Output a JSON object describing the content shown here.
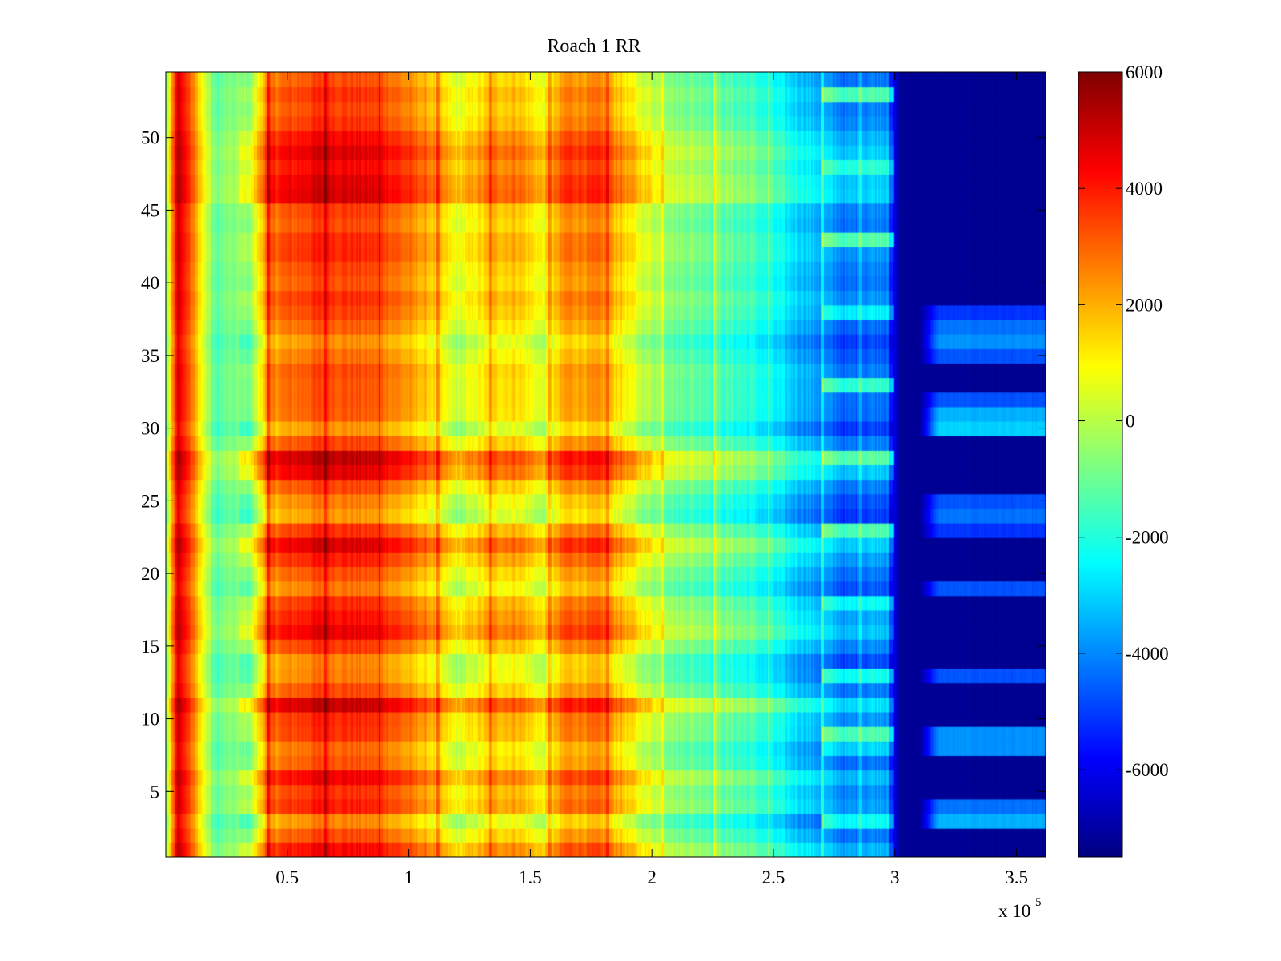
{
  "chart_data": {
    "type": "heatmap",
    "title": "Roach 1 RR",
    "xlabel": "",
    "ylabel": "",
    "x_multiplier_label": "x 10",
    "x_multiplier_exponent": "5",
    "xlim": [
      0,
      3.62
    ],
    "ylim": [
      0.5,
      54.5
    ],
    "x_ticks": [
      0.5,
      1,
      1.5,
      2,
      2.5,
      3,
      3.5
    ],
    "x_tick_labels": [
      "0.5",
      "1",
      "1.5",
      "2",
      "2.5",
      "3",
      "3.5"
    ],
    "y_ticks": [
      5,
      10,
      15,
      20,
      25,
      30,
      35,
      40,
      45,
      50
    ],
    "y_tick_labels": [
      "5",
      "10",
      "15",
      "20",
      "25",
      "30",
      "35",
      "40",
      "45",
      "50"
    ],
    "rows": 54,
    "colormap": "jet",
    "colorbar": {
      "range": [
        -7500,
        6000
      ],
      "ticks": [
        6000,
        4000,
        2000,
        0,
        -2000,
        -4000,
        -6000
      ],
      "tick_labels": [
        "6000",
        "4000",
        "2000",
        "0",
        "-2000",
        "-4000",
        "-6000"
      ]
    },
    "column_profile": [
      {
        "x": 0.0,
        "value": -900
      },
      {
        "x": 0.05,
        "value": 5300
      },
      {
        "x": 0.12,
        "value": 2200
      },
      {
        "x": 0.2,
        "value": -1200
      },
      {
        "x": 0.35,
        "value": -400
      },
      {
        "x": 0.42,
        "value": 2800
      },
      {
        "x": 0.65,
        "value": 3700
      },
      {
        "x": 0.9,
        "value": 3300
      },
      {
        "x": 1.1,
        "value": 1700
      },
      {
        "x": 1.2,
        "value": 500
      },
      {
        "x": 1.35,
        "value": 1700
      },
      {
        "x": 1.45,
        "value": 1800
      },
      {
        "x": 1.55,
        "value": 700
      },
      {
        "x": 1.65,
        "value": 2600
      },
      {
        "x": 1.8,
        "value": 2500
      },
      {
        "x": 1.95,
        "value": 600
      },
      {
        "x": 2.1,
        "value": -700
      },
      {
        "x": 2.4,
        "value": -1600
      },
      {
        "x": 2.6,
        "value": -3000
      },
      {
        "x": 2.7,
        "value": -3600
      },
      {
        "x": 2.8,
        "value": -4300
      },
      {
        "x": 2.95,
        "value": -3800
      },
      {
        "x": 3.02,
        "value": -7200
      },
      {
        "x": 3.62,
        "value": -7300
      }
    ],
    "row_pattern": "alternating warm and cool horizontal bands; strongest at rows 11, 16, 22, 28, 46-50; tail region (x > 3.0) mostly dark blue with light-blue bands near rows 3, 8, 13, 19, 24, 30, 36"
  }
}
